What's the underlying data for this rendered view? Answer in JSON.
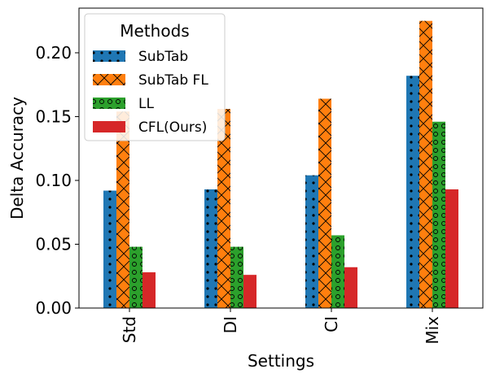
{
  "chart_data": {
    "type": "bar",
    "title": "",
    "xlabel": "Settings",
    "ylabel": "Delta Accuracy",
    "categories": [
      "Std",
      "DI",
      "CI",
      "Mix"
    ],
    "ylim": [
      0,
      0.235
    ],
    "yticks": [
      0.0,
      0.05,
      0.1,
      0.15,
      0.2
    ],
    "ytick_labels": [
      "0.00",
      "0.05",
      "0.10",
      "0.15",
      "0.20"
    ],
    "legend": {
      "title": "Methods",
      "placement": "top-left"
    },
    "series": [
      {
        "name": "SubTab",
        "color": "#1f77b4",
        "hatch": "dots",
        "values": [
          0.092,
          0.093,
          0.104,
          0.182
        ]
      },
      {
        "name": "SubTab FL",
        "color": "#ff7f0e",
        "hatch": "cross",
        "values": [
          0.154,
          0.156,
          0.164,
          0.225
        ]
      },
      {
        "name": "LL",
        "color": "#2ca02c",
        "hatch": "circles",
        "values": [
          0.048,
          0.048,
          0.057,
          0.146
        ]
      },
      {
        "name": "CFL(Ours)",
        "color": "#d62728",
        "hatch": "none",
        "values": [
          0.028,
          0.026,
          0.032,
          0.093
        ]
      }
    ]
  }
}
